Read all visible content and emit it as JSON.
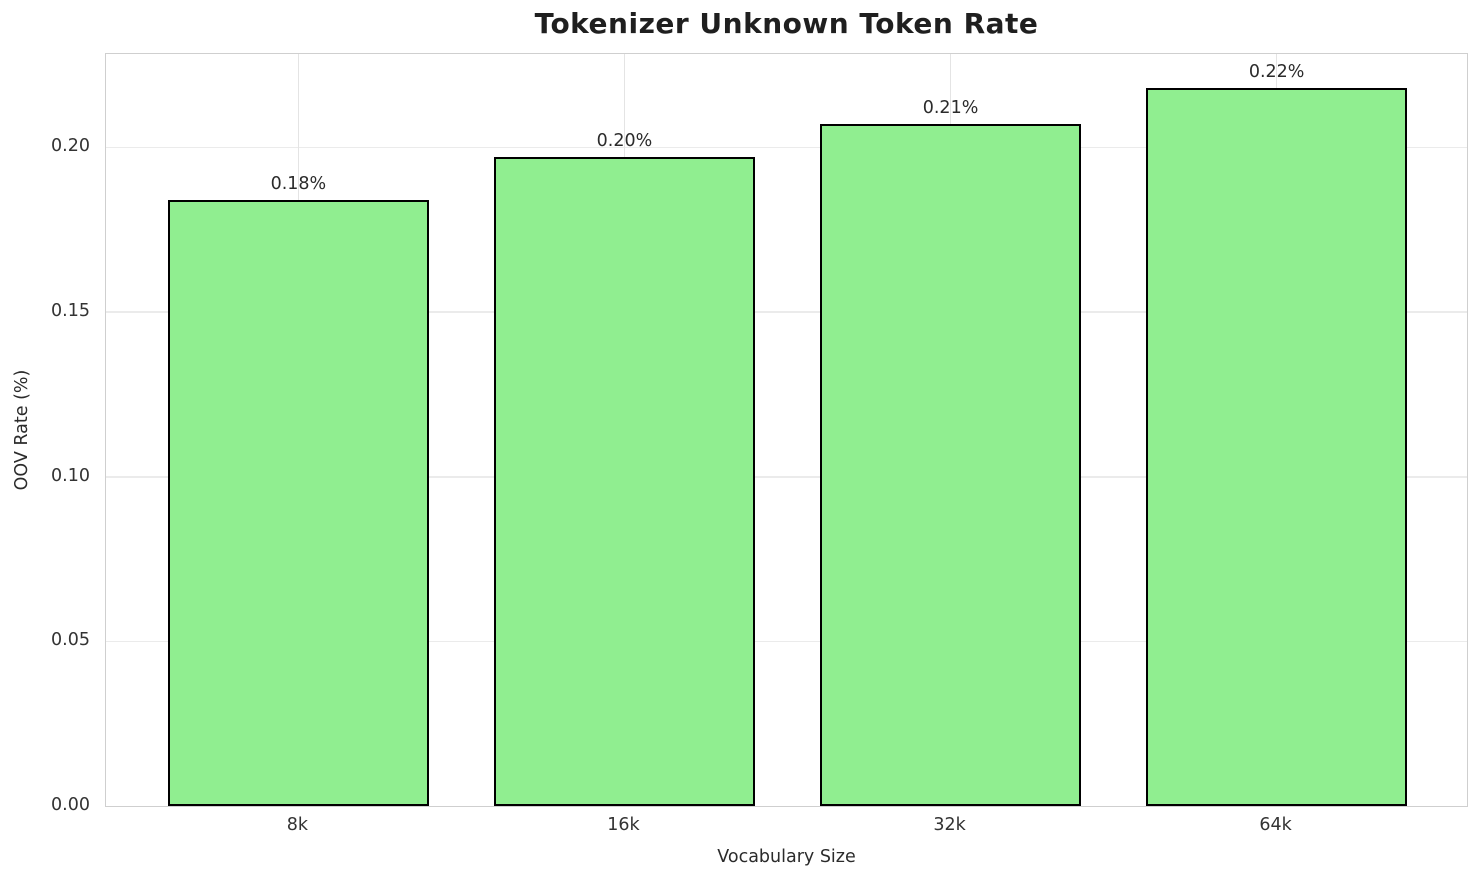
{
  "chart_data": {
    "type": "bar",
    "title": "Tokenizer Unknown Token Rate",
    "xlabel": "Vocabulary Size",
    "ylabel": "OOV Rate (%)",
    "categories": [
      "8k",
      "16k",
      "32k",
      "64k"
    ],
    "values": [
      0.184,
      0.197,
      0.207,
      0.218
    ],
    "bar_labels": [
      "0.18%",
      "0.20%",
      "0.21%",
      "0.22%"
    ],
    "yticks": [
      {
        "value": 0.0,
        "label": "0.00"
      },
      {
        "value": 0.05,
        "label": "0.05"
      },
      {
        "value": 0.1,
        "label": "0.10"
      },
      {
        "value": 0.15,
        "label": "0.15"
      },
      {
        "value": 0.2,
        "label": "0.20"
      }
    ],
    "ylim": [
      0,
      0.229
    ],
    "grid": true,
    "legend": "none",
    "colors": {
      "bar_fill": "#90ee90",
      "bar_edge": "#000000",
      "grid_h": "#ebebeb",
      "grid_v": "#e4e4e4",
      "spine": "#cfcfcf",
      "text": "#2b2b2b",
      "background": "#ffffff"
    }
  }
}
